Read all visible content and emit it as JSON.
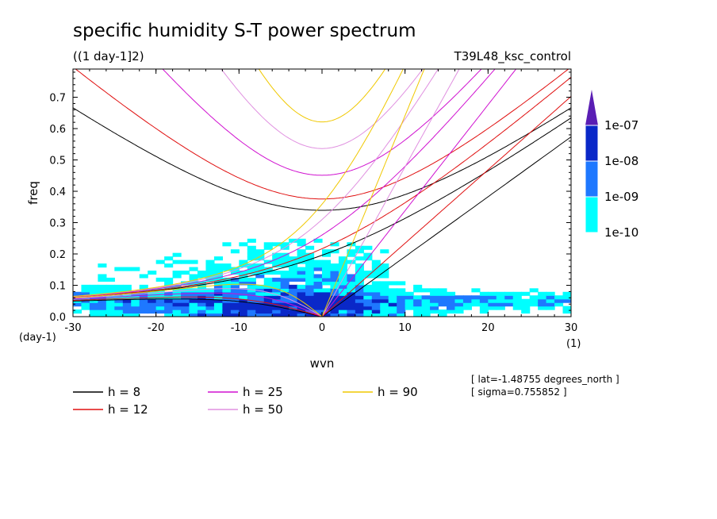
{
  "chart_data": {
    "type": "heatmap",
    "title": "specific humidity S-T power spectrum",
    "subtitle": "((1 day-1]2)",
    "run_label": "T39L48_ksc_control",
    "xlabel": "wvn",
    "ylabel": "freq",
    "x_unit_label": "(1)",
    "y_unit_label": "(day-1)",
    "xlim": [
      -30,
      30
    ],
    "ylim": [
      0,
      0.79
    ],
    "x_ticks": [
      -30,
      -20,
      -10,
      0,
      10,
      20,
      30
    ],
    "x_tick_labels": [
      "-30",
      "-20",
      "-10",
      "0",
      "10",
      "20",
      "30"
    ],
    "y_ticks": [
      0.0,
      0.1,
      0.2,
      0.3,
      0.4,
      0.5,
      0.6,
      0.7
    ],
    "y_tick_labels": [
      "0.0",
      "0.1",
      "0.2",
      "0.3",
      "0.4",
      "0.5",
      "0.6",
      "0.7"
    ],
    "colorbar": {
      "levels": [
        "1e-10",
        "1e-09",
        "1e-08",
        "1e-07"
      ],
      "colors": [
        "#00ffff",
        "#1e78ff",
        "#0a28c8",
        "#5a1eb4"
      ]
    },
    "series": [
      {
        "name": "h =  8",
        "h": 8,
        "color": "#000000"
      },
      {
        "name": "h = 12",
        "h": 12,
        "color": "#e01010"
      },
      {
        "name": "h = 25",
        "h": 25,
        "color": "#d010d0"
      },
      {
        "name": "h = 50",
        "h": 50,
        "color": "#e090e0"
      },
      {
        "name": "h = 90",
        "h": 90,
        "color": "#f0c800"
      }
    ],
    "info": [
      "[ lat=-1.48755 degrees_north ]",
      "[ sigma=0.755852 ]"
    ]
  }
}
